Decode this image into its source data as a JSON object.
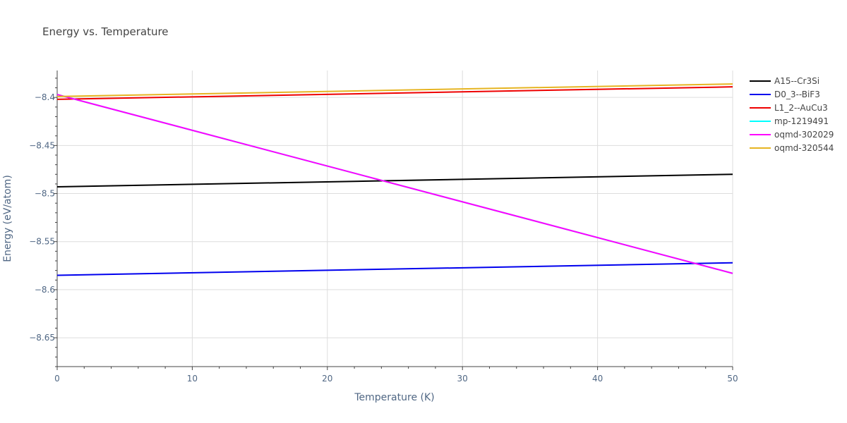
{
  "chart_data": {
    "type": "line",
    "title": "Energy vs. Temperature",
    "xlabel": "Temperature (K)",
    "ylabel": "Energy (eV/atom)",
    "xlim": [
      0,
      50
    ],
    "ylim": [
      -8.68,
      -8.372
    ],
    "x_ticks": [
      0,
      10,
      20,
      30,
      40,
      50
    ],
    "x_tick_labels": [
      "0",
      "10",
      "20",
      "30",
      "40",
      "50"
    ],
    "y_ticks": [
      -8.4,
      -8.45,
      -8.5,
      -8.55,
      -8.6,
      -8.65
    ],
    "y_tick_labels": [
      "−8.4",
      "−8.45",
      "−8.5",
      "−8.55",
      "−8.6",
      "−8.65"
    ],
    "grid": true,
    "legend_position": "right",
    "series": [
      {
        "name": "A15--Cr3Si",
        "color": "#000000",
        "x": [
          0,
          50
        ],
        "y": [
          -8.493,
          -8.48
        ]
      },
      {
        "name": "D0_3--BiF3",
        "color": "#0000ee",
        "x": [
          0,
          50
        ],
        "y": [
          -8.585,
          -8.572
        ]
      },
      {
        "name": "L1_2--AuCu3",
        "color": "#ee0000",
        "x": [
          0,
          50
        ],
        "y": [
          -8.402,
          -8.389
        ]
      },
      {
        "name": "mp-1219491",
        "color": "#00ffff",
        "x": [
          0,
          50
        ],
        "y": [
          -8.397,
          -8.583
        ]
      },
      {
        "name": "oqmd-302029",
        "color": "#ff00ff",
        "x": [
          0,
          50
        ],
        "y": [
          -8.397,
          -8.583
        ]
      },
      {
        "name": "oqmd-320544",
        "color": "#e6b422",
        "x": [
          0,
          50
        ],
        "y": [
          -8.399,
          -8.386
        ]
      }
    ]
  }
}
